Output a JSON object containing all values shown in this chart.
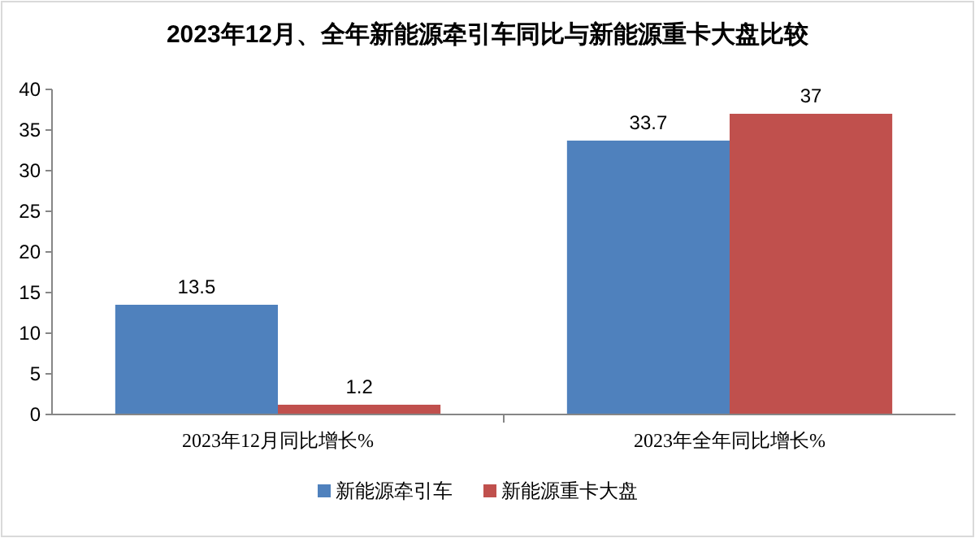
{
  "chart_data": {
    "type": "bar",
    "title": "2023年12月、全年新能源牵引车同比与新能源重卡大盘比较",
    "categories": [
      "2023年12月同比增长%",
      "2023年全年同比增长%"
    ],
    "series": [
      {
        "name": "新能源牵引车",
        "color": "#4f81bd",
        "values": [
          13.5,
          33.7
        ]
      },
      {
        "name": "新能源重卡大盘",
        "color": "#c0504d",
        "values": [
          1.2,
          37
        ]
      }
    ],
    "ylim": [
      0,
      40
    ],
    "yticks": [
      0,
      5,
      10,
      15,
      20,
      25,
      30,
      35,
      40
    ],
    "grid": false,
    "legend": "bottom",
    "data_labels": true
  }
}
